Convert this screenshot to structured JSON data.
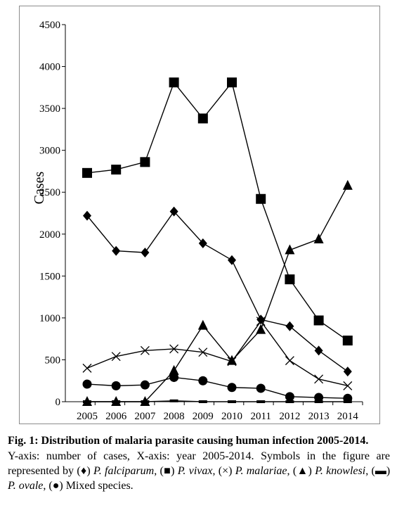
{
  "chart_data": {
    "type": "line",
    "title": "",
    "xlabel": "",
    "ylabel": "Cases",
    "ylim": [
      0,
      4500
    ],
    "yticks": [
      0,
      500,
      1000,
      1500,
      2000,
      2500,
      3000,
      3500,
      4000,
      4500
    ],
    "categories": [
      "2005",
      "2006",
      "2007",
      "2008",
      "2009",
      "2010",
      "2011",
      "2012",
      "2013",
      "2014"
    ],
    "grid": false,
    "legend": "none",
    "series": [
      {
        "marker": "square",
        "color": "#000000",
        "values": [
          2730,
          2770,
          2860,
          3810,
          3380,
          3810,
          2420,
          1460,
          970,
          730
        ]
      },
      {
        "marker": "diamond",
        "color": "#000000",
        "values": [
          2220,
          1800,
          1780,
          2270,
          1890,
          1690,
          980,
          900,
          610,
          360
        ]
      },
      {
        "marker": "triangle",
        "color": "#000000",
        "values": [
          0,
          0,
          0,
          370,
          910,
          490,
          860,
          1810,
          1940,
          2580
        ]
      },
      {
        "marker": "x",
        "color": "#000000",
        "values": [
          400,
          540,
          610,
          630,
          590,
          480,
          960,
          490,
          270,
          190
        ]
      },
      {
        "marker": "circle",
        "color": "#000000",
        "values": [
          210,
          190,
          200,
          290,
          250,
          170,
          160,
          60,
          50,
          40
        ]
      },
      {
        "marker": "dash",
        "color": "#000000",
        "values": [
          0,
          0,
          0,
          10,
          0,
          0,
          0,
          0,
          0,
          0
        ]
      }
    ]
  },
  "caption": {
    "title": "Fig. 1: Distribution of malaria parasite causing human infection 2005-2014.",
    "body_intro": "Y-axis: number of cases, X-axis: year 2005-2014. Symbols in the figure are represented by",
    "items": [
      {
        "symbol": "(♦)",
        "name": "P. falciparum",
        "sep": ","
      },
      {
        "symbol": "(■)",
        "name": "P. vivax",
        "sep": ","
      },
      {
        "symbol": "(×)",
        "name": "P. malariae",
        "sep": ","
      },
      {
        "symbol": "(▲)",
        "name": "P. knowlesi",
        "sep": ","
      },
      {
        "symbol": "(▬)",
        "name": "P. ovale",
        "sep": ","
      },
      {
        "symbol": "(●)",
        "name": "Mixed species.",
        "sep": ""
      }
    ]
  }
}
